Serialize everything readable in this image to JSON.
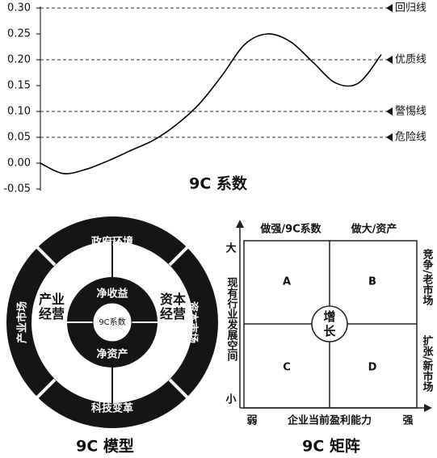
{
  "chart_data": {
    "type": "line",
    "title": "9C 系数",
    "categories": [
      null,
      null,
      null,
      null,
      null,
      null,
      null,
      null,
      null,
      null,
      null,
      null,
      null,
      null,
      null,
      null
    ],
    "values": [
      0,
      -0.02,
      -0.012,
      0.005,
      0.025,
      0.045,
      0.075,
      0.115,
      0.17,
      0.23,
      0.25,
      0.235,
      0.195,
      0.155,
      0.155,
      0.21
    ],
    "color": "#000000",
    "ylim": [
      -0.05,
      0.3
    ],
    "yticks": [
      {
        "value": 0.3,
        "label": "0.30"
      },
      {
        "value": 0.25,
        "label": "0.25"
      },
      {
        "value": 0.2,
        "label": "0.20"
      },
      {
        "value": 0.15,
        "label": "0.15"
      },
      {
        "value": 0.1,
        "label": "0.10"
      },
      {
        "value": 0.05,
        "label": "0.05"
      },
      {
        "value": 0,
        "label": "0.00"
      },
      {
        "value": -0.05,
        "label": "-0.05"
      }
    ],
    "reference_lines": [
      {
        "value": 0.3,
        "label": "回归线"
      },
      {
        "value": 0.2,
        "label": "优质线"
      },
      {
        "value": 0.1,
        "label": "警惕线"
      },
      {
        "value": 0.05,
        "label": "危险线"
      }
    ]
  },
  "model": {
    "title": "9C 模型",
    "outer": [
      "政府环境",
      "资本市场",
      "科技变革",
      "产业市场"
    ],
    "middle": [
      "产业经营",
      "资本经营"
    ],
    "inner": [
      "净收益",
      "净资产"
    ],
    "center": "9C系数"
  },
  "matrix": {
    "title": "9C 矩阵",
    "top": [
      "做强/9C系数",
      "做大/资产"
    ],
    "y_high": "大",
    "y_low": "小",
    "y_label": "现有行业发展空间",
    "x_low": "弱",
    "x_high": "强",
    "x_label": "企业当前盈利能力",
    "right": [
      "竞争/老市场",
      "扩张/新市场"
    ],
    "cells": [
      "A",
      "B",
      "C",
      "D"
    ],
    "center": "增长"
  }
}
